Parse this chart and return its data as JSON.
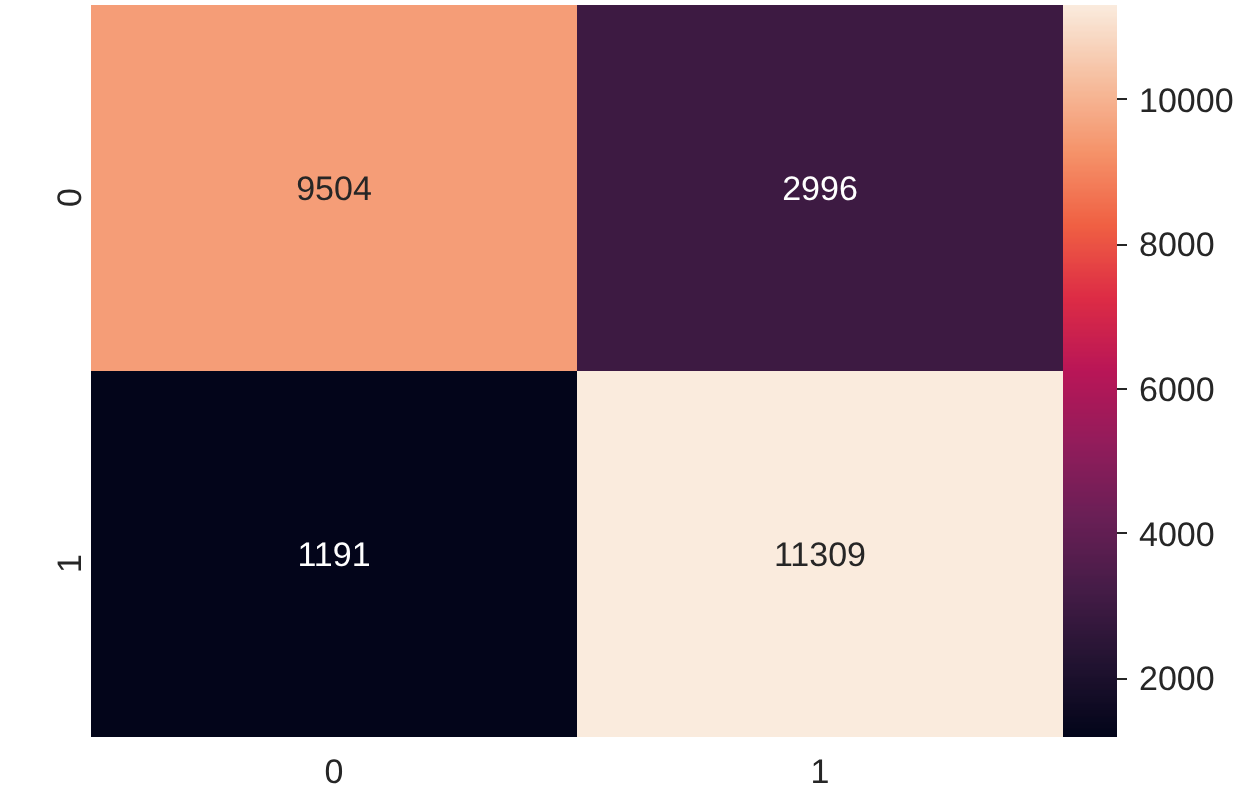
{
  "chart_data": {
    "type": "heatmap",
    "categories": [
      "0",
      "1"
    ],
    "y_categories": [
      "0",
      "1"
    ],
    "cells": [
      [
        9504,
        2996
      ],
      [
        1191,
        11309
      ]
    ],
    "clim": [
      1191,
      11309
    ],
    "cticks": [
      2000,
      4000,
      6000,
      8000,
      10000
    ],
    "data_labels": true
  }
}
